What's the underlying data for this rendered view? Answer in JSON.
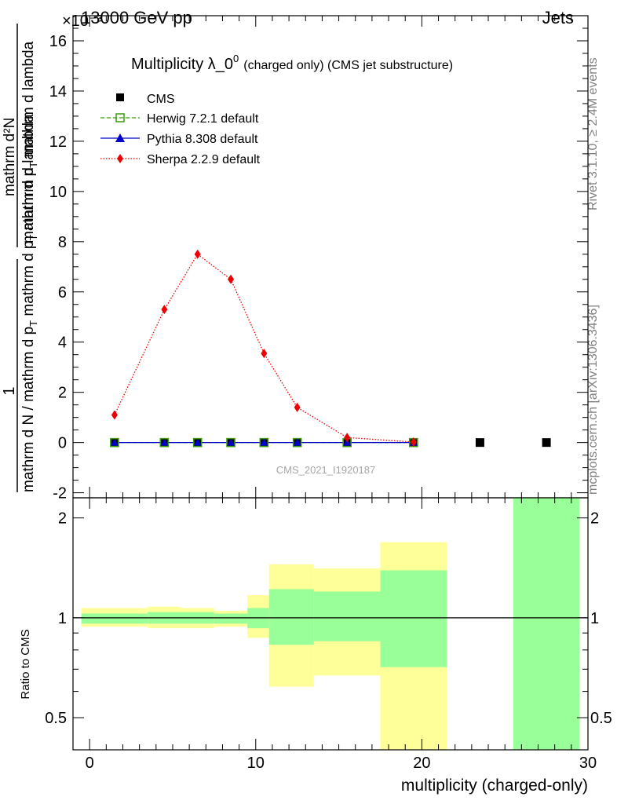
{
  "header": {
    "left": "13000 GeV pp",
    "right": "Jets",
    "exponent": "×10⁻³"
  },
  "side_text": {
    "rivet": "Rivet 3.1.10, ≥ 2.4M events",
    "mcplots": "mcplots.cern.ch [arXiv:1306.3436]"
  },
  "watermark": "CMS_2021_I1920187",
  "main_plot": {
    "title": "Multiplicity λ_0",
    "title_sup": "0",
    "title_small": "(charged only) (CMS jet substructure)",
    "ylabel_numerator": "1",
    "ylabel_denominator": "mathrm d N / mathrm d p_T mathrm d p_T mathrm d lambda",
    "ylabel_numerator2": "mathrm d²N",
    "ylabel_text_a": "mathrm d²N",
    "ylabel_text_b": "mathrm d p",
    "ylabel_text_c": "T",
    "ylabel_text_d": " mathrm d lambda",
    "ylabel_text_e": "mathrm d N / mathrm d p",
    "ylabel_text_f": "T",
    "ylabel_text_g": " mathrm d p",
    "ylabel_text_h": "T",
    "ylabel_text_i": " mathrm d lambda"
  },
  "legend": {
    "cms": "CMS",
    "herwig": "Herwig 7.2.1 default",
    "pythia": "Pythia 8.308 default",
    "sherpa": "Sherpa 2.2.9 default"
  },
  "ratio_plot": {
    "ylabel": "Ratio to CMS",
    "xlabel": "multiplicity (charged-only)"
  },
  "colors": {
    "cms": "#000000",
    "herwig": "#3c9a0e",
    "pythia": "#0000cc",
    "sherpa": "#ee0000",
    "band_inner": "#99ff99",
    "band_outer": "#ffff99"
  },
  "chart_data": [
    {
      "type": "scatter",
      "title": "Multiplicity λ_0^0 (charged only) (CMS jet substructure)",
      "xlabel": "multiplicity (charged-only)",
      "ylabel": "1 / (mathrm d N / mathrm d p_T mathrm d p_T mathrm d lambda) · mathrm d²N / mathrm d p_T mathrm d lambda",
      "y_scale_factor": "1e-3",
      "xlim": [
        -1,
        30
      ],
      "ylim": [
        -2.2,
        17
      ],
      "xticks": [
        0,
        10,
        20,
        30
      ],
      "yticks": [
        -2,
        0,
        2,
        4,
        6,
        8,
        10,
        12,
        14,
        16
      ],
      "series": [
        {
          "name": "CMS",
          "x": [
            1.5,
            4.5,
            6.5,
            8.5,
            10.5,
            12.5,
            15.5,
            19.5,
            23.5,
            27.5
          ],
          "y": [
            0,
            0,
            0,
            0,
            0,
            0,
            0,
            0,
            0,
            0
          ]
        },
        {
          "name": "Herwig 7.2.1 default",
          "x": [
            1.5,
            4.5,
            6.5,
            8.5,
            10.5,
            12.5,
            15.5,
            19.5
          ],
          "y": [
            0,
            0,
            0,
            0,
            0,
            0,
            0,
            0
          ]
        },
        {
          "name": "Pythia 8.308 default",
          "x": [
            1.5,
            4.5,
            6.5,
            8.5,
            10.5,
            12.5,
            15.5,
            19.5
          ],
          "y": [
            0,
            0,
            0,
            0,
            0,
            0,
            0,
            0
          ]
        },
        {
          "name": "Sherpa 2.2.9 default",
          "x": [
            1.5,
            4.5,
            6.5,
            8.5,
            10.5,
            12.5,
            15.5,
            19.5
          ],
          "y": [
            1.1,
            5.3,
            7.5,
            6.5,
            3.55,
            1.4,
            0.2,
            0.02
          ]
        }
      ]
    },
    {
      "type": "area",
      "title": "Ratio to CMS",
      "xlabel": "multiplicity (charged-only)",
      "ylabel": "Ratio to CMS",
      "xlim": [
        -1,
        30
      ],
      "ylim": [
        0.4,
        2.3
      ],
      "yscale": "log",
      "yticks": [
        0.5,
        1,
        2
      ],
      "xticks": [
        0,
        10,
        20,
        30
      ],
      "reference_line": 1,
      "bins": [
        {
          "x0": -0.5,
          "x1": 3.5,
          "outer": [
            0.94,
            1.07
          ],
          "inner": [
            0.96,
            1.03
          ]
        },
        {
          "x0": 3.5,
          "x1": 5.5,
          "outer": [
            0.93,
            1.08
          ],
          "inner": [
            0.96,
            1.04
          ]
        },
        {
          "x0": 5.5,
          "x1": 7.5,
          "outer": [
            0.93,
            1.07
          ],
          "inner": [
            0.96,
            1.04
          ]
        },
        {
          "x0": 7.5,
          "x1": 9.5,
          "outer": [
            0.94,
            1.05
          ],
          "inner": [
            0.96,
            1.03
          ]
        },
        {
          "x0": 9.5,
          "x1": 10.8,
          "outer": [
            0.87,
            1.17
          ],
          "inner": [
            0.93,
            1.07
          ]
        },
        {
          "x0": 10.8,
          "x1": 13.5,
          "outer": [
            0.62,
            1.45
          ],
          "inner": [
            0.83,
            1.22
          ]
        },
        {
          "x0": 13.5,
          "x1": 17.5,
          "outer": [
            0.67,
            1.41
          ],
          "inner": [
            0.85,
            1.2
          ]
        },
        {
          "x0": 17.5,
          "x1": 21.5,
          "outer": [
            0.35,
            1.69
          ],
          "inner": [
            0.71,
            1.39
          ]
        },
        {
          "x0": 25.5,
          "x1": 29.5,
          "outer": [
            0.35,
            2.3
          ],
          "inner": [
            0.35,
            2.3
          ]
        }
      ]
    }
  ]
}
